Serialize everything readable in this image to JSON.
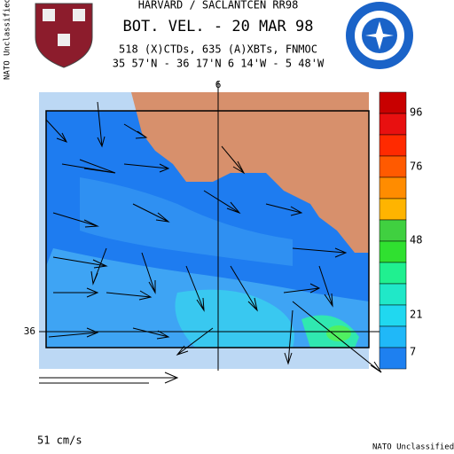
{
  "header": {
    "line1": "HARVARD / SACLANTCEN RR98",
    "title": "BOT. VEL. - 20 MAR 98",
    "line3": "518 (X)CTDs, 635 (A)XBTs, FNMOC",
    "line4": "35 57'N - 36 17'N  6 14'W - 5 48'W"
  },
  "map": {
    "lon_label": "6",
    "lat_label": "36"
  },
  "colorbar": {
    "labels": [
      "96",
      "76",
      "48",
      "21",
      "7"
    ]
  },
  "scale_label": "51 cm/s",
  "classification": {
    "side": "NATO Unclassified",
    "bottom": "NATO Unclassified"
  }
}
